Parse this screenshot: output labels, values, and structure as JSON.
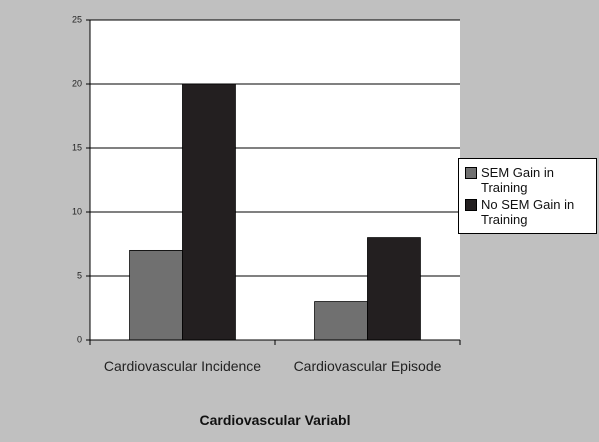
{
  "chart_data": {
    "type": "bar",
    "xlabel": "Cardiovascular Variabl",
    "categories": [
      "Cardiovascular Incidence",
      "Cardiovascular Episode"
    ],
    "series": [
      {
        "name": "SEM Gain in Training",
        "color": "#707070",
        "values": [
          7,
          3
        ]
      },
      {
        "name": "No SEM Gain in Training",
        "color": "#231f20",
        "values": [
          20,
          8
        ]
      }
    ],
    "ylim": [
      0,
      25
    ],
    "yticks": [
      0,
      5,
      10,
      15,
      20,
      25
    ],
    "grid": true,
    "legend": "right"
  }
}
